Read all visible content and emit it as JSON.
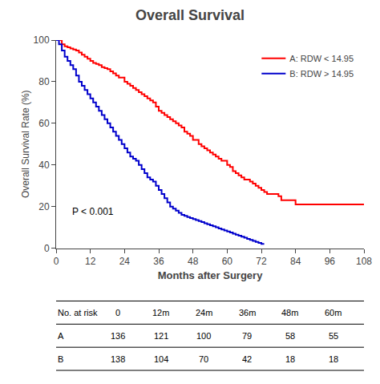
{
  "chart_data": {
    "type": "step",
    "title": "Overall Survival",
    "xlabel": "Months after Surgery",
    "ylabel": "Overall Survival Rate (%)",
    "xlim": [
      0,
      108
    ],
    "ylim": [
      0,
      100
    ],
    "xticks": [
      0,
      12,
      24,
      36,
      48,
      60,
      72,
      84,
      96,
      108
    ],
    "yticks": [
      0,
      20,
      40,
      60,
      80,
      100
    ],
    "grid": false,
    "legend": "upper right",
    "series": [
      {
        "name": "A: RDW < 14.95",
        "color": "#ff0000",
        "x": [
          0,
          2,
          3,
          4,
          5,
          6,
          7,
          8,
          9,
          10,
          11,
          12,
          13,
          14,
          15,
          16,
          17,
          18,
          19,
          20,
          21,
          22,
          24,
          25,
          26,
          27,
          28,
          29,
          30,
          31,
          32,
          33,
          34,
          35,
          36,
          37,
          38,
          39,
          40,
          41,
          42,
          43,
          44,
          45,
          46,
          47,
          48,
          50,
          51,
          52,
          53,
          54,
          55,
          56,
          57,
          58,
          60,
          61,
          62,
          63,
          64,
          65,
          66,
          68,
          69,
          70,
          71,
          72,
          73,
          74,
          78,
          79,
          84,
          96,
          108
        ],
        "values": [
          100,
          98,
          97,
          96.5,
          96,
          95.5,
          95,
          94,
          93,
          92,
          91,
          90,
          89,
          88.5,
          88,
          87,
          86.5,
          86,
          85,
          84,
          83,
          82,
          80,
          79,
          78,
          77,
          76,
          75,
          74,
          73,
          72,
          71,
          70,
          68,
          66,
          65,
          64,
          63,
          62,
          61,
          60,
          59,
          58,
          56,
          55,
          54,
          52,
          50,
          49,
          48,
          47,
          46,
          45,
          44,
          43,
          42,
          40,
          39,
          37,
          36,
          35,
          34,
          33,
          32,
          31,
          30,
          29,
          28,
          27,
          26,
          25,
          23,
          21,
          21,
          21
        ]
      },
      {
        "name": "B: RDW > 14.95",
        "color": "#0000cc",
        "x": [
          0,
          1,
          2,
          3,
          4,
          5,
          6,
          7,
          8,
          9,
          10,
          11,
          12,
          13,
          14,
          15,
          16,
          17,
          18,
          19,
          20,
          21,
          22,
          23,
          24,
          25,
          26,
          27,
          28,
          29,
          30,
          31,
          32,
          33,
          34,
          35,
          36,
          37,
          38,
          39,
          40,
          41,
          42,
          43,
          44,
          45,
          46,
          47,
          48,
          49,
          50,
          51,
          52,
          53,
          54,
          55,
          56,
          57,
          58,
          59,
          60,
          61,
          62,
          63,
          64,
          65,
          66,
          67,
          68,
          69,
          70,
          71,
          72,
          73
        ],
        "values": [
          100,
          98,
          95,
          92,
          90,
          88,
          86,
          83,
          80,
          78,
          76,
          74,
          72,
          70,
          68,
          66,
          64,
          62,
          60,
          58,
          56,
          54,
          52,
          50,
          48,
          46,
          44,
          43,
          42,
          40,
          38,
          36,
          34,
          33,
          32,
          30,
          28,
          26,
          24,
          22,
          20,
          19,
          18,
          17,
          16,
          15.5,
          15,
          14.5,
          14,
          13.5,
          13,
          12.5,
          12,
          11.5,
          11,
          10.5,
          10,
          9.5,
          9,
          8.5,
          8,
          7.5,
          7,
          6.5,
          6,
          5.5,
          5,
          4.5,
          4,
          3.5,
          3,
          2.5,
          2,
          2
        ]
      }
    ],
    "annotations": [
      {
        "text": "P < 0.001",
        "x": 5,
        "y": 14
      }
    ],
    "table": {
      "header": [
        "No. at risk",
        "0",
        "12m",
        "24m",
        "36m",
        "48m",
        "60m"
      ],
      "rows": [
        [
          "A",
          "136",
          "121",
          "100",
          "79",
          "58",
          "55"
        ],
        [
          "B",
          "138",
          "104",
          "70",
          "42",
          "18",
          "18"
        ]
      ]
    }
  }
}
